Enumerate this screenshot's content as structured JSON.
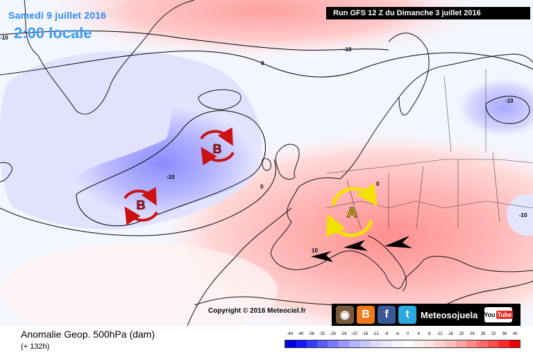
{
  "header": {
    "date": "Samedi 9 juillet 2016",
    "time": "2:00 locale",
    "run": "Run GFS 12 Z du Dimanche 3 juillet 2016"
  },
  "footer": {
    "product": "Anomalie Geop. 500hPa (dam)",
    "lead": "(+ 132h)",
    "copyright": "Copyright © 2016 Meteociel.fr"
  },
  "branding": {
    "name": "Meteosojuela",
    "youtube_label": "You",
    "youtube_tube": "Tube",
    "icons": [
      "instagram-icon",
      "blogger-icon",
      "facebook-icon",
      "twitter-icon"
    ]
  },
  "markers": {
    "low_1": "B",
    "low_2": "B",
    "high_1": "A"
  },
  "contour_labels": [
    "-10",
    "0",
    "-10",
    "0",
    "-10",
    "10",
    "-10",
    "-10",
    "0"
  ],
  "scale": {
    "ticks": [
      "-44",
      "-40",
      "-36",
      "-32",
      "-28",
      "-24",
      "-20",
      "-16",
      "-12",
      "-8",
      "-4",
      "0",
      "4",
      "8",
      "12",
      "16",
      "20",
      "24",
      "28",
      "32",
      "36",
      "40"
    ],
    "colors": [
      "#0000e0",
      "#1515ff",
      "#3a3aff",
      "#5a5aff",
      "#7a7aff",
      "#9898ff",
      "#b4b4ff",
      "#c8c8ff",
      "#dadaff",
      "#e8e8ff",
      "#f6f6ff",
      "#ffffff",
      "#fff0f0",
      "#ffe0e0",
      "#ffd0d0",
      "#ffbcbc",
      "#ffa4a4",
      "#ff8888",
      "#ff6a6a",
      "#ff4a4a",
      "#ff2a2a",
      "#ee0000"
    ]
  }
}
